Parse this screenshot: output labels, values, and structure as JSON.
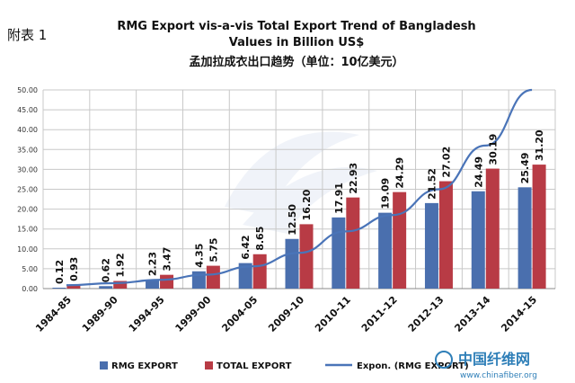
{
  "corner_label": "附表 1",
  "title_line1": "RMG Export vis-a-vis Total Export Trend of Bangladesh",
  "title_line2": "Values in Billion US$",
  "title_cn": "孟加拉成衣出口趋势（单位：10亿美元）",
  "watermark": {
    "text": "中国纤维网",
    "url": "www.chinafiber.org"
  },
  "colors": {
    "rmg": "#4a6fae",
    "total": "#b83b45",
    "trend": "#4a74b8"
  },
  "chart_data": {
    "type": "bar",
    "categories": [
      "1984-85",
      "1989-90",
      "1994-95",
      "1999-00",
      "2004-05",
      "2009-10",
      "2010-11",
      "2011-12",
      "2012-13",
      "2013-14",
      "2014-15"
    ],
    "series": [
      {
        "name": "RMG EXPORT",
        "values": [
          0.12,
          0.62,
          2.23,
          4.35,
          6.42,
          12.5,
          17.91,
          19.09,
          21.52,
          24.49,
          25.49
        ],
        "labels": [
          "0.12",
          "0.62",
          "2.23",
          "4.35",
          "6.42",
          "12.50",
          "17.91",
          "19.09",
          "21.52",
          "24.49",
          "25.49"
        ]
      },
      {
        "name": "TOTAL EXPORT",
        "values": [
          0.93,
          1.92,
          3.47,
          5.75,
          8.65,
          16.2,
          22.93,
          24.29,
          27.02,
          30.19,
          31.2
        ],
        "labels": [
          "0.93",
          "1.92",
          "3.47",
          "5.75",
          "8.65",
          "16.20",
          "22.93",
          "24.29",
          "27.02",
          "30.19",
          "31.20"
        ]
      }
    ],
    "trendline": {
      "name": "Expon. (RMG EXPORT)",
      "values": [
        0.85,
        1.35,
        2.2,
        3.5,
        5.6,
        9.0,
        14.4,
        18.5,
        25.0,
        36.0,
        50.0
      ]
    },
    "ylim": [
      0,
      50
    ],
    "yticks": [
      "0.00",
      "5.00",
      "10.00",
      "15.00",
      "20.00",
      "25.00",
      "30.00",
      "35.00",
      "40.00",
      "45.00",
      "50.00"
    ],
    "grid": true,
    "legend": "bottom"
  }
}
